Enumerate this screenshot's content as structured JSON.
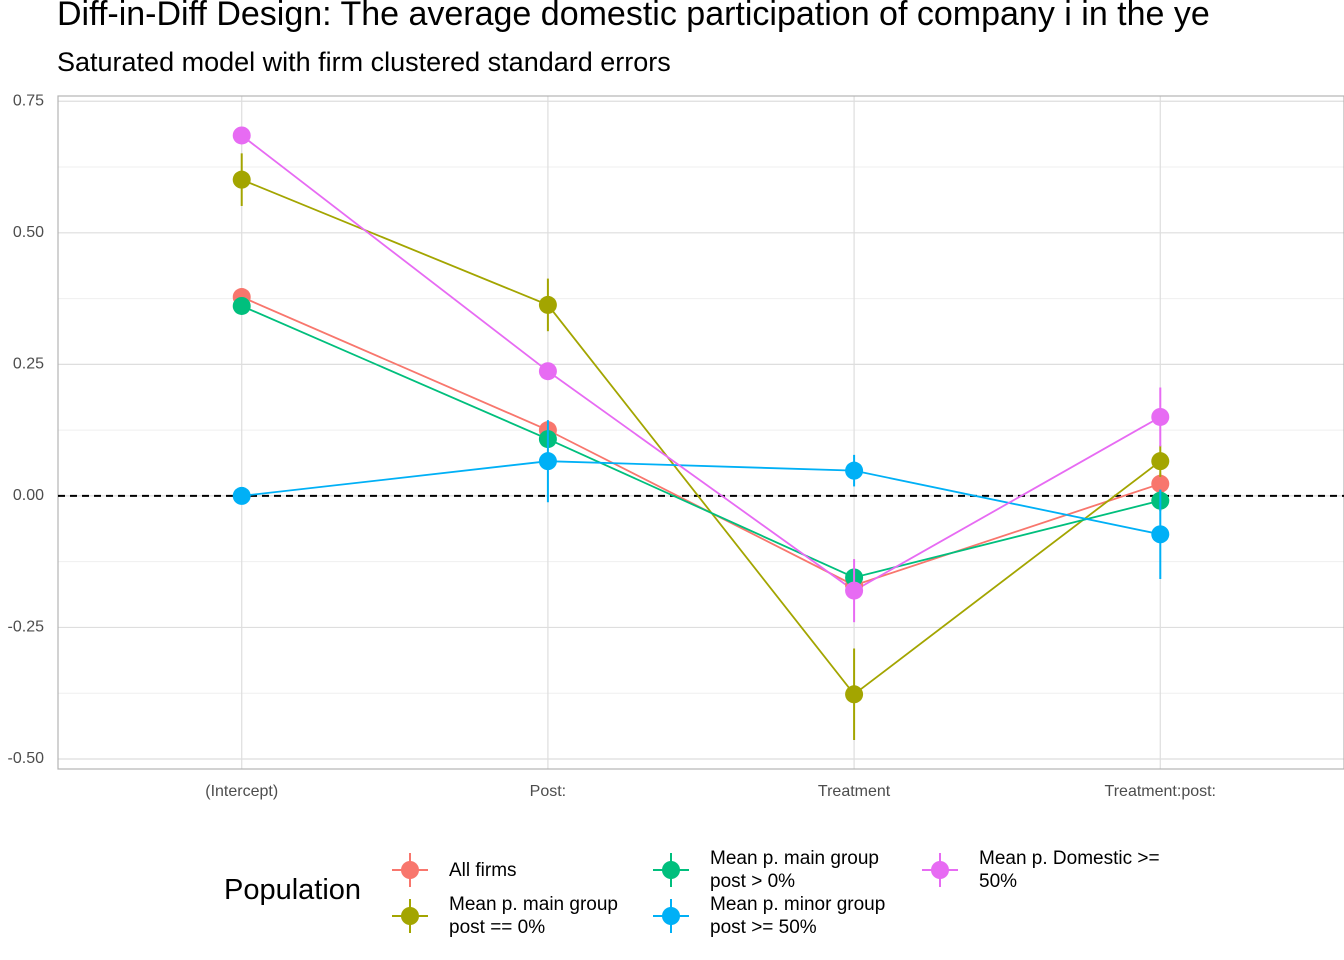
{
  "chart_data": {
    "type": "pointrange",
    "title": "Diff-in-Diff Design: The average domestic participation of company i in the ye",
    "subtitle": "Saturated model with firm clustered standard errors",
    "categories": [
      "(Intercept)",
      "Post:",
      "Treatment",
      "Treatment:post:"
    ],
    "ylim": [
      -0.519,
      0.76
    ],
    "yticks": [
      {
        "value": 0.75,
        "label": "0.75"
      },
      {
        "value": 0.5,
        "label": "0.50"
      },
      {
        "value": 0.25,
        "label": "0.25"
      },
      {
        "value": 0,
        "label": "0.00"
      },
      {
        "value": -0.25,
        "label": "-0.25"
      },
      {
        "value": -0.5,
        "label": "-0.50"
      }
    ],
    "yminorticks": [
      0.625,
      0.375,
      0.125,
      -0.125,
      -0.375
    ],
    "grid": true,
    "hline": 0,
    "legend_title": "Population",
    "legend_position": "bottom",
    "series": [
      {
        "name": "All firms",
        "color": "#F8766D",
        "values": [
          0.378,
          0.125,
          -0.17,
          0.023
        ],
        "errors": [
          0.01,
          0.015,
          0.02,
          0.02
        ]
      },
      {
        "name": "Mean p. main group post == 0%",
        "color": "#A3A500",
        "values": [
          0.601,
          0.363,
          -0.377,
          0.066
        ],
        "errors": [
          0.05,
          0.05,
          0.087,
          0.03
        ]
      },
      {
        "name": "Mean p. main group post > 0%",
        "color": "#00BF7D",
        "values": [
          0.361,
          0.108,
          -0.155,
          -0.009
        ],
        "errors": [
          0.01,
          0.015,
          0.015,
          0.02
        ]
      },
      {
        "name": "Mean p. minor group post >= 50%",
        "color": "#00B0F6",
        "values": [
          0.0,
          0.066,
          0.048,
          -0.073
        ],
        "errors": [
          0.005,
          0.078,
          0.03,
          0.085
        ]
      },
      {
        "name": "Mean p. Domestic >= 50%",
        "color": "#E76BF3",
        "values": [
          0.685,
          0.237,
          -0.18,
          0.15
        ],
        "errors": [
          0.01,
          0.015,
          0.06,
          0.056
        ]
      }
    ]
  }
}
